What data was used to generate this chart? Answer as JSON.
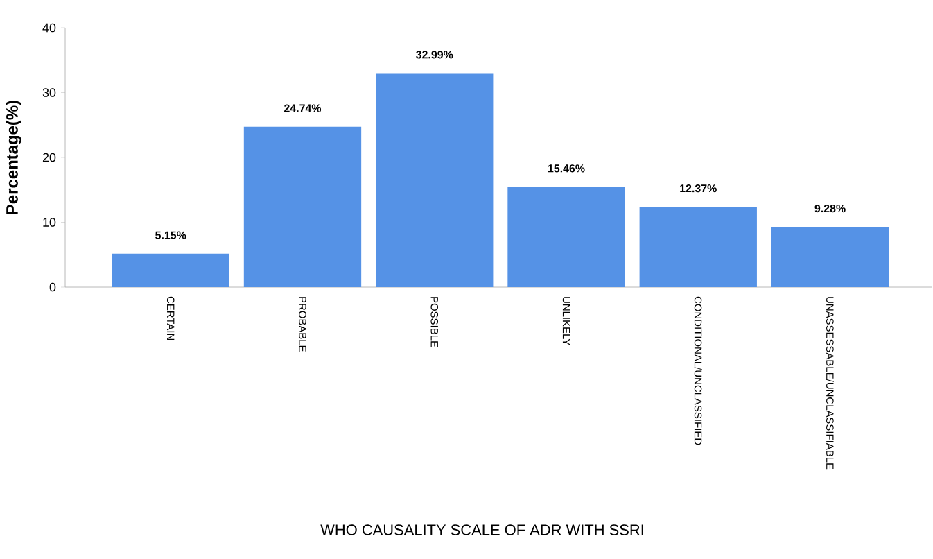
{
  "chart_data": {
    "type": "bar",
    "xlabel": "WHO CAUSALITY SCALE OF ADR WITH SSRI",
    "ylabel": "Percentage(%)",
    "categories": [
      "CERTAIN",
      "PROBABLE",
      "POSSIBLE",
      "UNLIKELY",
      "CONDITIONAL/UNCLASSIFIED",
      "UNASSESSABLE/UNCLASSIFIABLE"
    ],
    "values": [
      5.15,
      24.74,
      32.99,
      15.46,
      12.37,
      9.28
    ],
    "value_labels": [
      "5.15%",
      "24.74%",
      "32.99%",
      "15.46%",
      "12.37%",
      "9.28%"
    ],
    "color": "#5592e6",
    "ylim": [
      0,
      40
    ],
    "yticks": [
      0,
      10,
      20,
      30,
      40
    ]
  }
}
